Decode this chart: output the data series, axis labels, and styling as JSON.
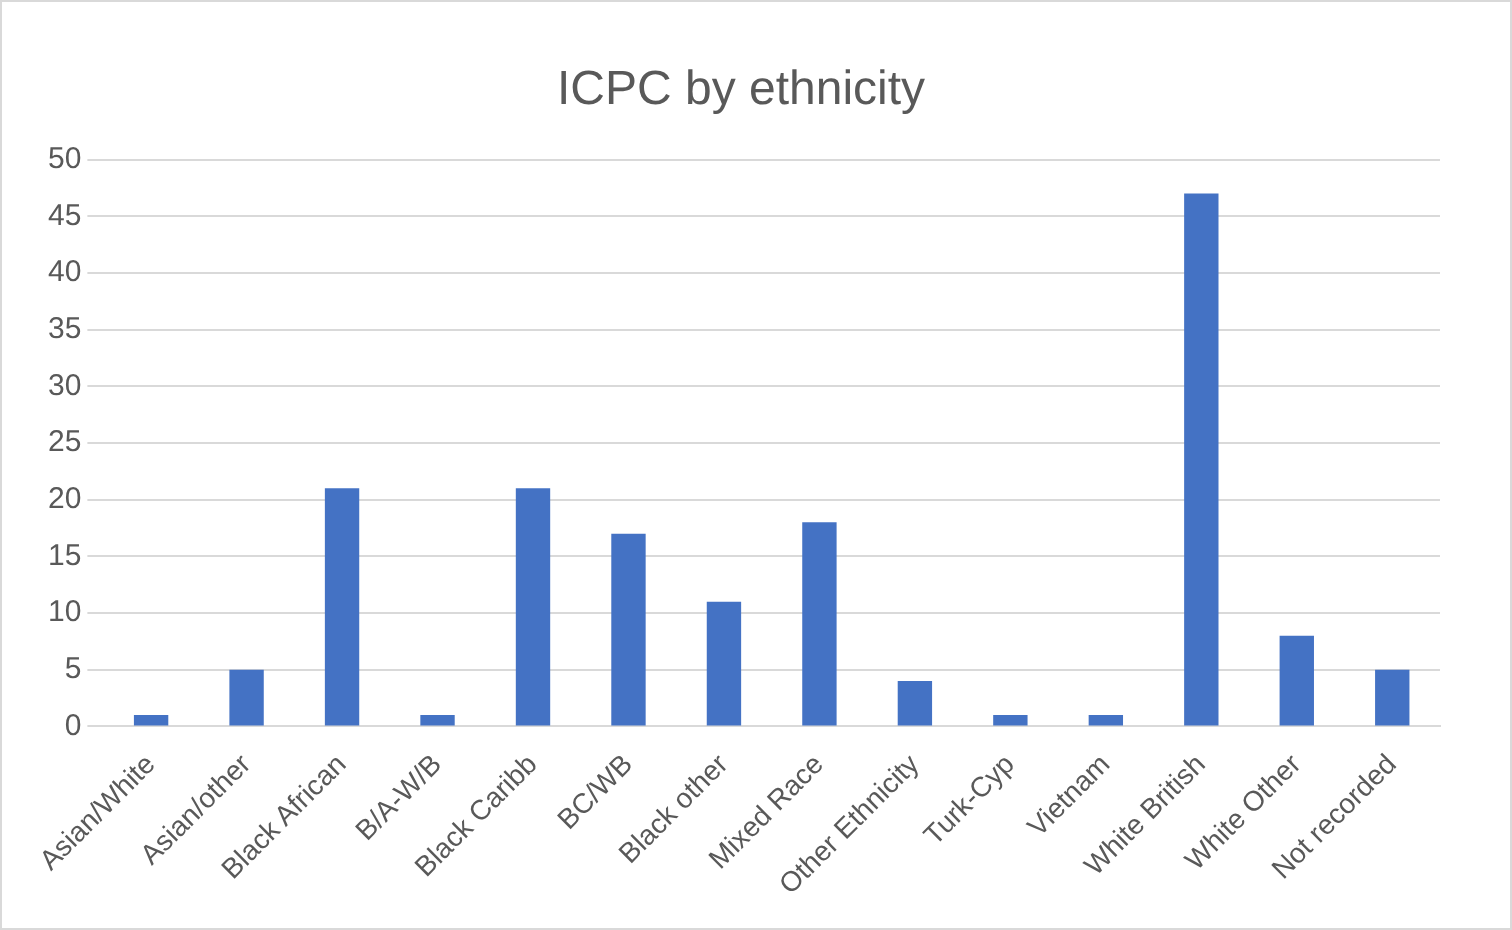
{
  "chart_data": {
    "type": "bar",
    "title": "ICPC by ethnicity",
    "categories": [
      "Asian/White",
      "Asian/other",
      "Black African",
      "B/A-W/B",
      "Black Caribb",
      "BC/WB",
      "Black other",
      "Mixed Race",
      "Other Ethnicity",
      "Turk-Cyp",
      "Vietnam",
      "White British",
      "White Other",
      "Not recorded"
    ],
    "values": [
      1,
      5,
      21,
      1,
      21,
      17,
      11,
      18,
      4,
      1,
      1,
      47,
      8,
      5
    ],
    "color": "#4472c4",
    "ylim": [
      0,
      50
    ],
    "yticks": [
      0,
      5,
      10,
      15,
      20,
      25,
      30,
      35,
      40,
      45,
      50
    ],
    "grid": "y"
  }
}
